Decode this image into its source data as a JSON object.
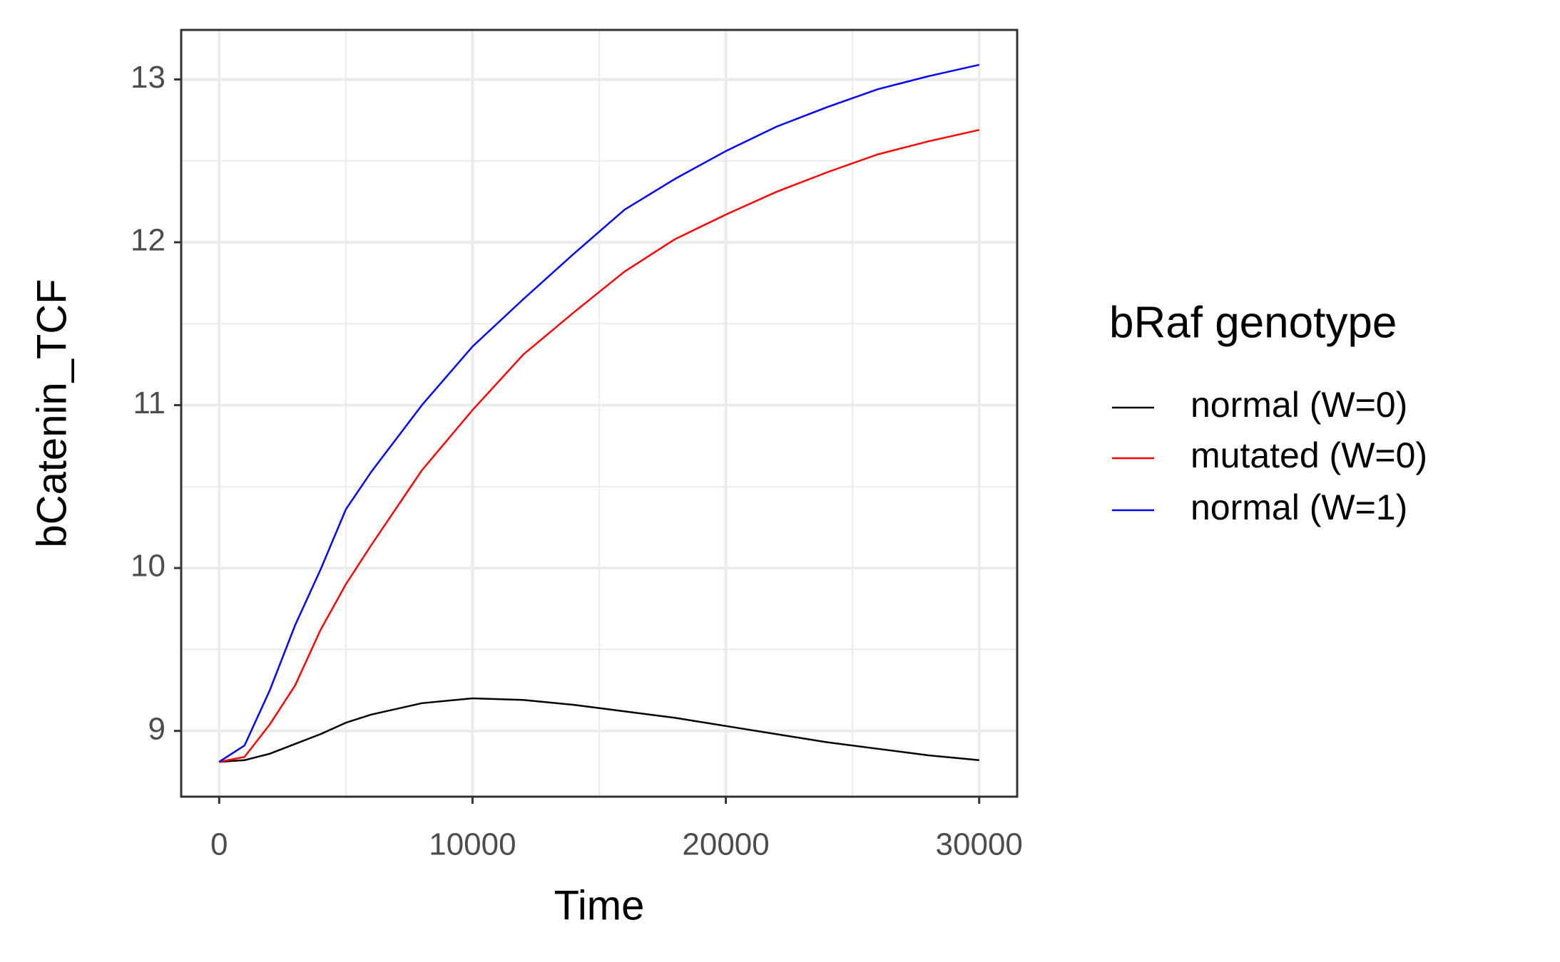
{
  "chart_data": {
    "type": "line",
    "x_label": "Time",
    "y_label": "bCatenin_TCF",
    "legend_title": "bRaf genotype",
    "legend_position": "right",
    "grid": true,
    "xlim": [
      -1500,
      31500
    ],
    "ylim": [
      8.596,
      13.304
    ],
    "xticks": [
      0,
      10000,
      20000,
      30000
    ],
    "yticks": [
      9,
      10,
      11,
      12,
      13
    ],
    "x_minor_ticks": [
      5000,
      15000,
      25000
    ],
    "y_minor_ticks": [
      9.5,
      10.5,
      11.5,
      12.5
    ],
    "x": [
      0,
      1000,
      2000,
      3000,
      4000,
      5000,
      6000,
      8000,
      10000,
      12000,
      14000,
      16000,
      18000,
      20000,
      22000,
      24000,
      26000,
      28000,
      30000
    ],
    "series": [
      {
        "name": "normal (W=0)",
        "color": "#000000",
        "values": [
          8.81,
          8.82,
          8.86,
          8.92,
          8.98,
          9.05,
          9.1,
          9.17,
          9.2,
          9.19,
          9.16,
          9.12,
          9.08,
          9.03,
          8.98,
          8.93,
          8.89,
          8.85,
          8.82
        ]
      },
      {
        "name": "mutated (W=0)",
        "color": "#ff0000",
        "values": [
          8.81,
          8.84,
          9.04,
          9.28,
          9.62,
          9.9,
          10.14,
          10.6,
          10.97,
          11.31,
          11.57,
          11.82,
          12.02,
          12.17,
          12.31,
          12.43,
          12.54,
          12.62,
          12.69
        ]
      },
      {
        "name": "normal (W=1)",
        "color": "#0000ff",
        "values": [
          8.81,
          8.91,
          9.25,
          9.65,
          9.99,
          10.36,
          10.59,
          11.0,
          11.36,
          11.65,
          11.93,
          12.2,
          12.39,
          12.56,
          12.71,
          12.83,
          12.94,
          13.02,
          13.09
        ]
      }
    ]
  }
}
